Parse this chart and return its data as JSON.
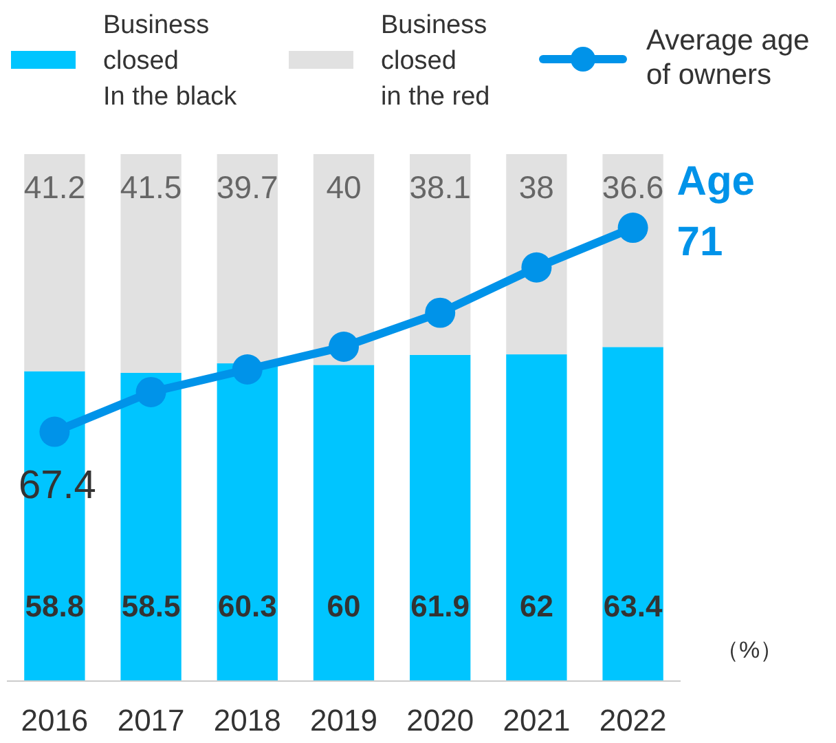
{
  "chart_data": {
    "type": "bar",
    "stacked": true,
    "categories": [
      "2016",
      "2017",
      "2018",
      "2019",
      "2020",
      "2021",
      "2022"
    ],
    "ylim": [
      0,
      100
    ],
    "y2lim": [
      63,
      72.3
    ],
    "tick_labels": "x",
    "legend": "top",
    "marker": "circle",
    "series": [
      {
        "name": "Business\nclosed\nIn the black",
        "color": "#00c5ff",
        "values": [
          58.8,
          58.5,
          60.3,
          60,
          61.9,
          62,
          63.4
        ],
        "value_labels": [
          "58.8",
          "58.5",
          "60.3",
          "60",
          "61.9",
          "62",
          "63.4"
        ]
      },
      {
        "name": "Business\nclosed\nin the red",
        "color": "#e1e1e1",
        "values": [
          41.2,
          41.5,
          39.7,
          40,
          38.1,
          38,
          36.6
        ],
        "value_labels": [
          "41.2",
          "41.5",
          "39.7",
          "40",
          "38.1",
          "38",
          "36.6"
        ]
      },
      {
        "name": "Average age\nof owners",
        "type": "line",
        "axis": "y2",
        "color": "#0093e9",
        "values": [
          67.4,
          68.1,
          68.5,
          68.9,
          69.5,
          70.3,
          71
        ],
        "value_labels": [
          "67.4",
          null,
          null,
          null,
          null,
          null,
          "71"
        ]
      }
    ],
    "annotations": [
      "Age",
      "（%）"
    ]
  }
}
